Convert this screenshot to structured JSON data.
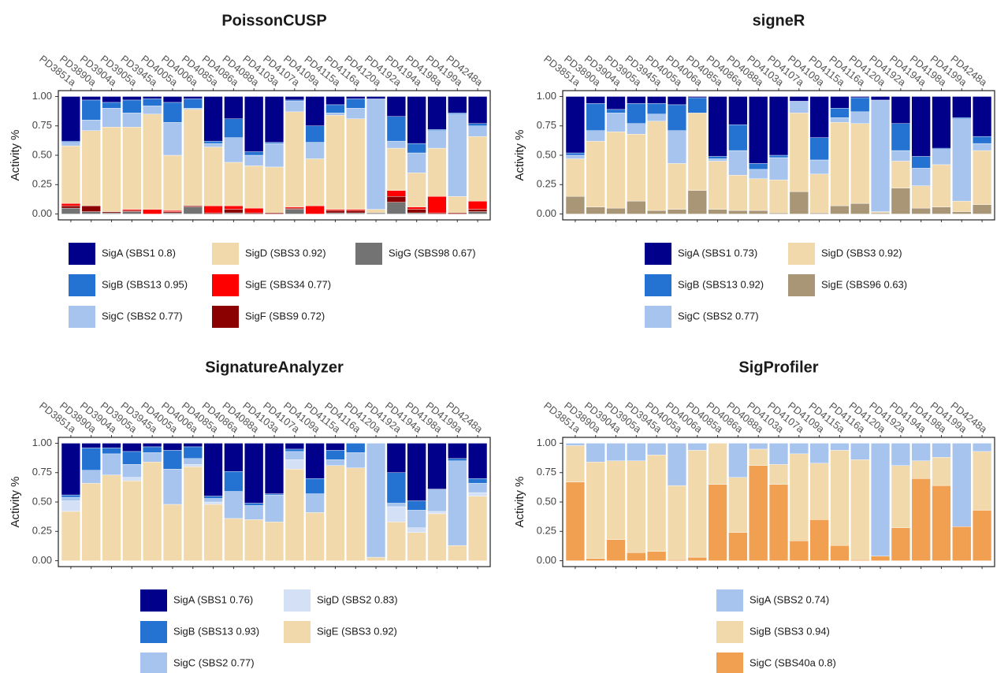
{
  "chart_data": [
    {
      "type": "bar",
      "stacked": true,
      "title": "PoissonCUSP",
      "ylabel": "Activity %",
      "categories": [
        "PD3851a",
        "PD3890a",
        "PD3904a",
        "PD3905a",
        "PD3945a",
        "PD4005a",
        "PD4006a",
        "PD4085a",
        "PD4086a",
        "PD4088a",
        "PD4103a",
        "PD4107a",
        "PD4109a",
        "PD4115a",
        "PD4116a",
        "PD4120a",
        "PD4192a",
        "PD4194a",
        "PD4198a",
        "PD4199a",
        "PD4248a"
      ],
      "ylim": [
        -0.05,
        1.05
      ],
      "yticks": [
        {
          "value": 0,
          "label": "0.00"
        },
        {
          "value": 0.25,
          "label": "0.25"
        },
        {
          "value": 0.5,
          "label": "0.50"
        },
        {
          "value": 0.75,
          "label": "0.75"
        },
        {
          "value": 1,
          "label": "1.00"
        }
      ],
      "series": [
        {
          "name": "SigA (SBS1 0.8)",
          "color": "#00008b",
          "values": [
            0.38,
            0.03,
            0.05,
            0.03,
            0.02,
            0.05,
            0.02,
            0.38,
            0.19,
            0.47,
            0.39,
            0.03,
            0.25,
            0.07,
            0.02,
            0.02,
            0.17,
            0.4,
            0.28,
            0.14,
            0.23
          ]
        },
        {
          "name": "SigB (SBS13 0.95)",
          "color": "#2473d3",
          "values": [
            0.01,
            0.17,
            0.05,
            0.11,
            0.06,
            0.17,
            0.08,
            0.02,
            0.16,
            0.03,
            0.01,
            0.01,
            0.14,
            0.07,
            0.08,
            0,
            0.21,
            0.08,
            0.01,
            0.01,
            0.02
          ]
        },
        {
          "name": "SigC (SBS2 0.77)",
          "color": "#a6c4ee",
          "values": [
            0.03,
            0.09,
            0.16,
            0.12,
            0.07,
            0.28,
            0.01,
            0.03,
            0.21,
            0.09,
            0.2,
            0.09,
            0.14,
            0.02,
            0.09,
            0.94,
            0.06,
            0.17,
            0.15,
            0.7,
            0.09
          ]
        },
        {
          "name": "SigD (SBS3 0.92)",
          "color": "#f2d9ab",
          "values": [
            0.49,
            0.64,
            0.72,
            0.7,
            0.81,
            0.47,
            0.82,
            0.5,
            0.37,
            0.36,
            0.39,
            0.81,
            0.4,
            0.8,
            0.77,
            0.03,
            0.36,
            0.29,
            0.41,
            0.14,
            0.55
          ]
        },
        {
          "name": "SigE (SBS34 0.77)",
          "color": "#ff0000",
          "values": [
            0.02,
            0,
            0,
            0.01,
            0.04,
            0.01,
            0,
            0.06,
            0.03,
            0.04,
            0,
            0.01,
            0.07,
            0.01,
            0.01,
            0,
            0.05,
            0.02,
            0.14,
            0,
            0.07
          ]
        },
        {
          "name": "SigF (SBS9 0.72)",
          "color": "#8b0000",
          "values": [
            0.02,
            0.05,
            0.01,
            0.01,
            0,
            0.01,
            0.01,
            0.01,
            0.03,
            0.01,
            0.01,
            0.01,
            0,
            0.02,
            0.02,
            0,
            0.05,
            0.03,
            0.01,
            0.01,
            0.02
          ]
        },
        {
          "name": "SigG (SBS98 0.67)",
          "color": "#737373",
          "values": [
            0.05,
            0.02,
            0.01,
            0.02,
            0,
            0.01,
            0.06,
            0,
            0.01,
            0,
            0,
            0.04,
            0,
            0.01,
            0.01,
            0.01,
            0.1,
            0.01,
            0,
            0,
            0.02
          ]
        }
      ]
    },
    {
      "type": "bar",
      "stacked": true,
      "title": "signeR",
      "ylabel": "Activity %",
      "categories": [
        "PD3851a",
        "PD3890a",
        "PD3904a",
        "PD3905a",
        "PD3945a",
        "PD4005a",
        "PD4006a",
        "PD4085a",
        "PD4086a",
        "PD4088a",
        "PD4103a",
        "PD4107a",
        "PD4109a",
        "PD4115a",
        "PD4116a",
        "PD4120a",
        "PD4192a",
        "PD4194a",
        "PD4198a",
        "PD4199a",
        "PD4248a"
      ],
      "ylim": [
        -0.05,
        1.05
      ],
      "yticks": [
        {
          "value": 0,
          "label": "0.00"
        },
        {
          "value": 0.25,
          "label": "0.25"
        },
        {
          "value": 0.5,
          "label": "0.50"
        },
        {
          "value": 0.75,
          "label": "0.75"
        },
        {
          "value": 1,
          "label": "1.00"
        }
      ],
      "series": [
        {
          "name": "SigA (SBS1 0.73)",
          "color": "#00008b",
          "values": [
            0.48,
            0.06,
            0.11,
            0.06,
            0.06,
            0.07,
            0.01,
            0.51,
            0.24,
            0.57,
            0.5,
            0.04,
            0.35,
            0.1,
            0.01,
            0.03,
            0.23,
            0.51,
            0.44,
            0.18,
            0.34
          ]
        },
        {
          "name": "SigB (SBS13 0.92)",
          "color": "#2473d3",
          "values": [
            0.02,
            0.23,
            0.03,
            0.17,
            0.09,
            0.22,
            0.13,
            0.02,
            0.22,
            0.05,
            0.02,
            0,
            0.19,
            0.08,
            0.12,
            0,
            0.23,
            0.1,
            0.01,
            0.01,
            0.06
          ]
        },
        {
          "name": "SigC (SBS2 0.77)",
          "color": "#a6c4ee",
          "values": [
            0.03,
            0.09,
            0.16,
            0.09,
            0.06,
            0.28,
            0,
            0.02,
            0.21,
            0.08,
            0.19,
            0.1,
            0.12,
            0.04,
            0.1,
            0.95,
            0.09,
            0.15,
            0.13,
            0.7,
            0.06
          ]
        },
        {
          "name": "SigD (SBS3 0.92)",
          "color": "#f2d9ab",
          "values": [
            0.32,
            0.56,
            0.65,
            0.57,
            0.76,
            0.39,
            0.66,
            0.41,
            0.3,
            0.27,
            0.28,
            0.67,
            0.33,
            0.71,
            0.68,
            0.01,
            0.23,
            0.19,
            0.36,
            0.09,
            0.46
          ]
        },
        {
          "name": "SigE (SBS96 0.63)",
          "color": "#a89677",
          "values": [
            0.15,
            0.06,
            0.05,
            0.11,
            0.03,
            0.04,
            0.2,
            0.04,
            0.03,
            0.03,
            0.01,
            0.19,
            0.01,
            0.07,
            0.09,
            0.01,
            0.22,
            0.05,
            0.06,
            0.02,
            0.08
          ]
        }
      ]
    },
    {
      "type": "bar",
      "stacked": true,
      "title": "SignatureAnalyzer",
      "ylabel": "Activity %",
      "categories": [
        "PD3851a",
        "PD3890a",
        "PD3904a",
        "PD3905a",
        "PD3945a",
        "PD4005a",
        "PD4006a",
        "PD4085a",
        "PD4086a",
        "PD4088a",
        "PD4103a",
        "PD4107a",
        "PD4109a",
        "PD4115a",
        "PD4116a",
        "PD4120a",
        "PD4192a",
        "PD4194a",
        "PD4198a",
        "PD4199a",
        "PD4248a"
      ],
      "ylim": [
        -0.05,
        1.05
      ],
      "yticks": [
        {
          "value": 0,
          "label": "0.00"
        },
        {
          "value": 0.25,
          "label": "0.25"
        },
        {
          "value": 0.5,
          "label": "0.50"
        },
        {
          "value": 0.75,
          "label": "0.75"
        },
        {
          "value": 1,
          "label": "1.00"
        }
      ],
      "series": [
        {
          "name": "SigA (SBS1 0.76)",
          "color": "#00008b",
          "values": [
            0.44,
            0.04,
            0.04,
            0.07,
            0.03,
            0.06,
            0.03,
            0.45,
            0.24,
            0.51,
            0.43,
            0.05,
            0.3,
            0.06,
            0,
            0,
            0.25,
            0.49,
            0.39,
            0.13,
            0.3
          ]
        },
        {
          "name": "SigB (SBS13 0.93)",
          "color": "#2473d3",
          "values": [
            0.02,
            0.19,
            0.05,
            0.11,
            0.05,
            0.16,
            0.1,
            0.02,
            0.17,
            0.02,
            0.01,
            0.02,
            0.13,
            0.08,
            0.08,
            0,
            0.26,
            0.08,
            0,
            0.02,
            0.04
          ]
        },
        {
          "name": "SigC (SBS2 0.77)",
          "color": "#a6c4ee",
          "values": [
            0.03,
            0.11,
            0.18,
            0.11,
            0.08,
            0.3,
            0.05,
            0.03,
            0.23,
            0.12,
            0.23,
            0.07,
            0.16,
            0.05,
            0.13,
            0.97,
            0.03,
            0.15,
            0.19,
            0.72,
            0.08
          ]
        },
        {
          "name": "SigD (SBS2 0.83)",
          "color": "#d3e0f5",
          "values": [
            0.09,
            0,
            0,
            0.03,
            0,
            0,
            0.02,
            0.02,
            0,
            0,
            0,
            0.08,
            0,
            0,
            0,
            0,
            0.13,
            0.04,
            0.02,
            0,
            0.03
          ]
        },
        {
          "name": "SigE (SBS3 0.92)",
          "color": "#f2d9ab",
          "values": [
            0.42,
            0.66,
            0.73,
            0.68,
            0.84,
            0.48,
            0.8,
            0.48,
            0.36,
            0.35,
            0.33,
            0.78,
            0.41,
            0.81,
            0.79,
            0.03,
            0.33,
            0.24,
            0.4,
            0.13,
            0.55
          ]
        }
      ]
    },
    {
      "type": "bar",
      "stacked": true,
      "title": "SigProfiler",
      "ylabel": "Activity %",
      "categories": [
        "PD3851a",
        "PD3890a",
        "PD3904a",
        "PD3905a",
        "PD3945a",
        "PD4005a",
        "PD4006a",
        "PD4085a",
        "PD4086a",
        "PD4088a",
        "PD4103a",
        "PD4107a",
        "PD4109a",
        "PD4115a",
        "PD4116a",
        "PD4120a",
        "PD4192a",
        "PD4194a",
        "PD4198a",
        "PD4199a",
        "PD4248a"
      ],
      "ylim": [
        -0.05,
        1.05
      ],
      "yticks": [
        {
          "value": 0,
          "label": "0.00"
        },
        {
          "value": 0.25,
          "label": "0.25"
        },
        {
          "value": 0.5,
          "label": "0.50"
        },
        {
          "value": 0.75,
          "label": "0.75"
        },
        {
          "value": 1,
          "label": "1.00"
        }
      ],
      "series": [
        {
          "name": "SigA (SBS2 0.74)",
          "color": "#a6c4ee",
          "values": [
            0.02,
            0.16,
            0.15,
            0.15,
            0.1,
            0.36,
            0.06,
            0,
            0.29,
            0.05,
            0.18,
            0.09,
            0.17,
            0.06,
            0.14,
            0.96,
            0.19,
            0.15,
            0.12,
            0.71,
            0.07
          ]
        },
        {
          "name": "SigB (SBS3 0.94)",
          "color": "#f2d9ab",
          "values": [
            0.31,
            0.82,
            0.67,
            0.78,
            0.82,
            0.63,
            0.91,
            0.35,
            0.47,
            0.14,
            0.17,
            0.74,
            0.48,
            0.81,
            0.85,
            0,
            0.53,
            0.15,
            0.24,
            0,
            0.5
          ]
        },
        {
          "name": "SigC (SBS40a 0.8)",
          "color": "#f0a050",
          "values": [
            0.67,
            0.02,
            0.18,
            0.07,
            0.08,
            0.01,
            0.03,
            0.65,
            0.24,
            0.81,
            0.65,
            0.17,
            0.35,
            0.13,
            0.01,
            0.04,
            0.28,
            0.7,
            0.64,
            0.29,
            0.43
          ]
        }
      ]
    }
  ]
}
